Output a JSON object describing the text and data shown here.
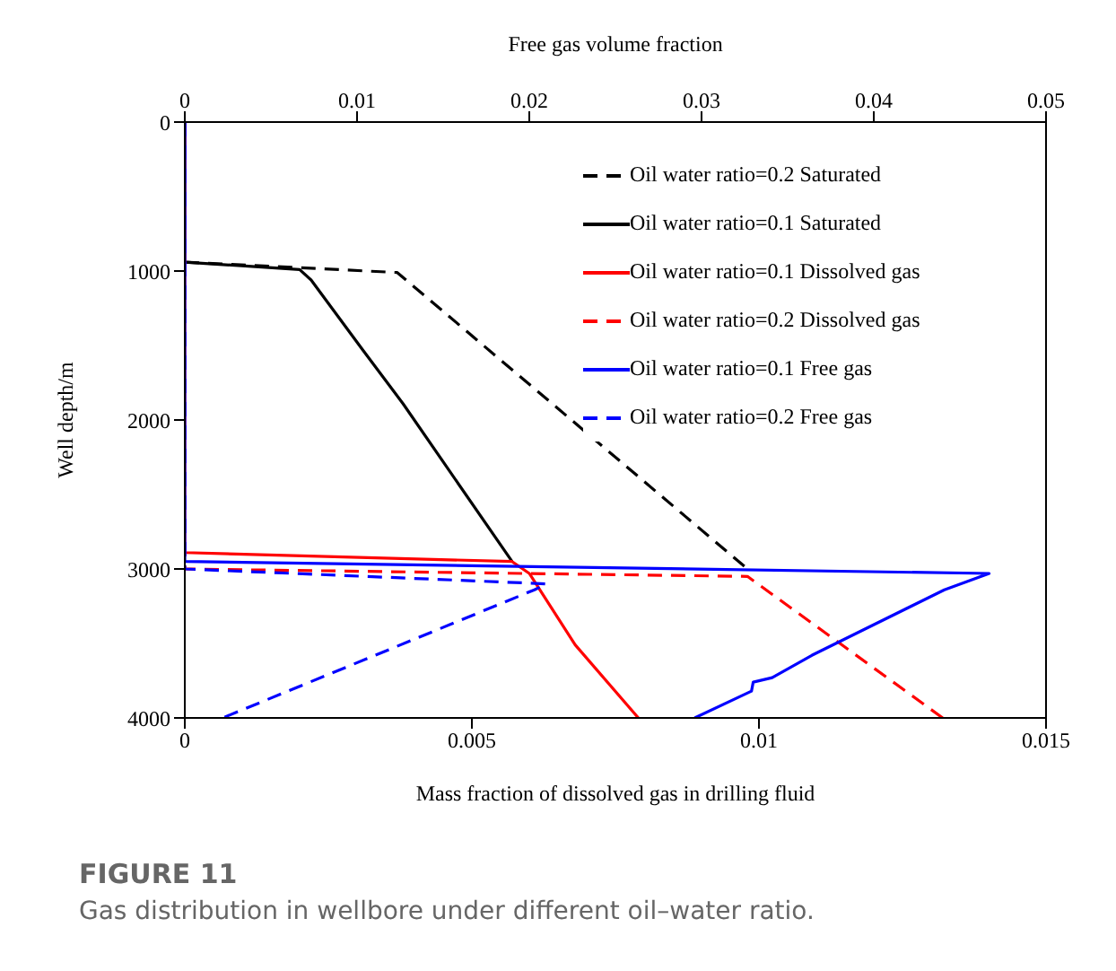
{
  "chart_data": {
    "type": "line",
    "title": "FIGURE 11",
    "subtitle": "Gas distribution in wellbore under different oil–water ratio.",
    "xlabel": "Mass fraction of dissolved gas in drilling fluid",
    "x2label": "Free gas volume fraction",
    "ylabel": "Well depth/m",
    "xlim": [
      0,
      0.015
    ],
    "xticks": [
      0,
      0.005,
      0.01,
      0.015
    ],
    "x2lim": [
      0,
      0.05
    ],
    "x2ticks": [
      0,
      0.01,
      0.02,
      0.03,
      0.04,
      0.05
    ],
    "ylim": [
      4000,
      0
    ],
    "yticks": [
      0,
      1000,
      2000,
      3000,
      4000
    ],
    "grid": false,
    "legend": "top right",
    "marker": "none",
    "series": [
      {
        "name": "Oil water ratio=0.2 Saturated",
        "color": "#000000",
        "line_style": "dashed",
        "x": [
          0,
          0,
          0.0037,
          0.0098
        ],
        "values": [
          0,
          940,
          1010,
          3000
        ]
      },
      {
        "name": "Oil water ratio=0.1 Saturated",
        "color": "#000000",
        "line_style": "solid",
        "x": [
          0,
          0,
          0.002,
          0.0022,
          0.0031,
          0.0038,
          0.0057
        ],
        "values": [
          0,
          940,
          990,
          1060,
          1530,
          1890,
          2950
        ]
      },
      {
        "name": "Oil water ratio=0.1 Dissolved gas",
        "color": "#ff0000",
        "line_style": "solid",
        "x": [
          0,
          0,
          0.0057,
          0.006,
          0.0068,
          0.0079
        ],
        "values": [
          0,
          2890,
          2950,
          3030,
          3510,
          4000
        ]
      },
      {
        "name": "Oil water ratio=0.2 Dissolved gas",
        "color": "#ff0000",
        "line_style": "dashed",
        "x": [
          0,
          0,
          0.0098,
          0.0132
        ],
        "values": [
          0,
          3000,
          3050,
          4000
        ]
      },
      {
        "name": "Oil water ratio=0.1 Free gas",
        "color": "#0000ff",
        "line_style": "solid",
        "axis": "x2",
        "x": [
          0,
          0,
          0.0467,
          0.0441,
          0.0364,
          0.0341,
          0.033,
          0.0329,
          0.0296
        ],
        "values": [
          0,
          2950,
          3030,
          3140,
          3580,
          3730,
          3760,
          3820,
          4000
        ]
      },
      {
        "name": "Oil water ratio=0.2 Free gas",
        "color": "#0000ff",
        "line_style": "dashed",
        "axis": "x2",
        "x": [
          0,
          0,
          0.021,
          0.0203,
          0.0022
        ],
        "values": [
          0,
          3000,
          3100,
          3140,
          4000
        ]
      }
    ]
  }
}
